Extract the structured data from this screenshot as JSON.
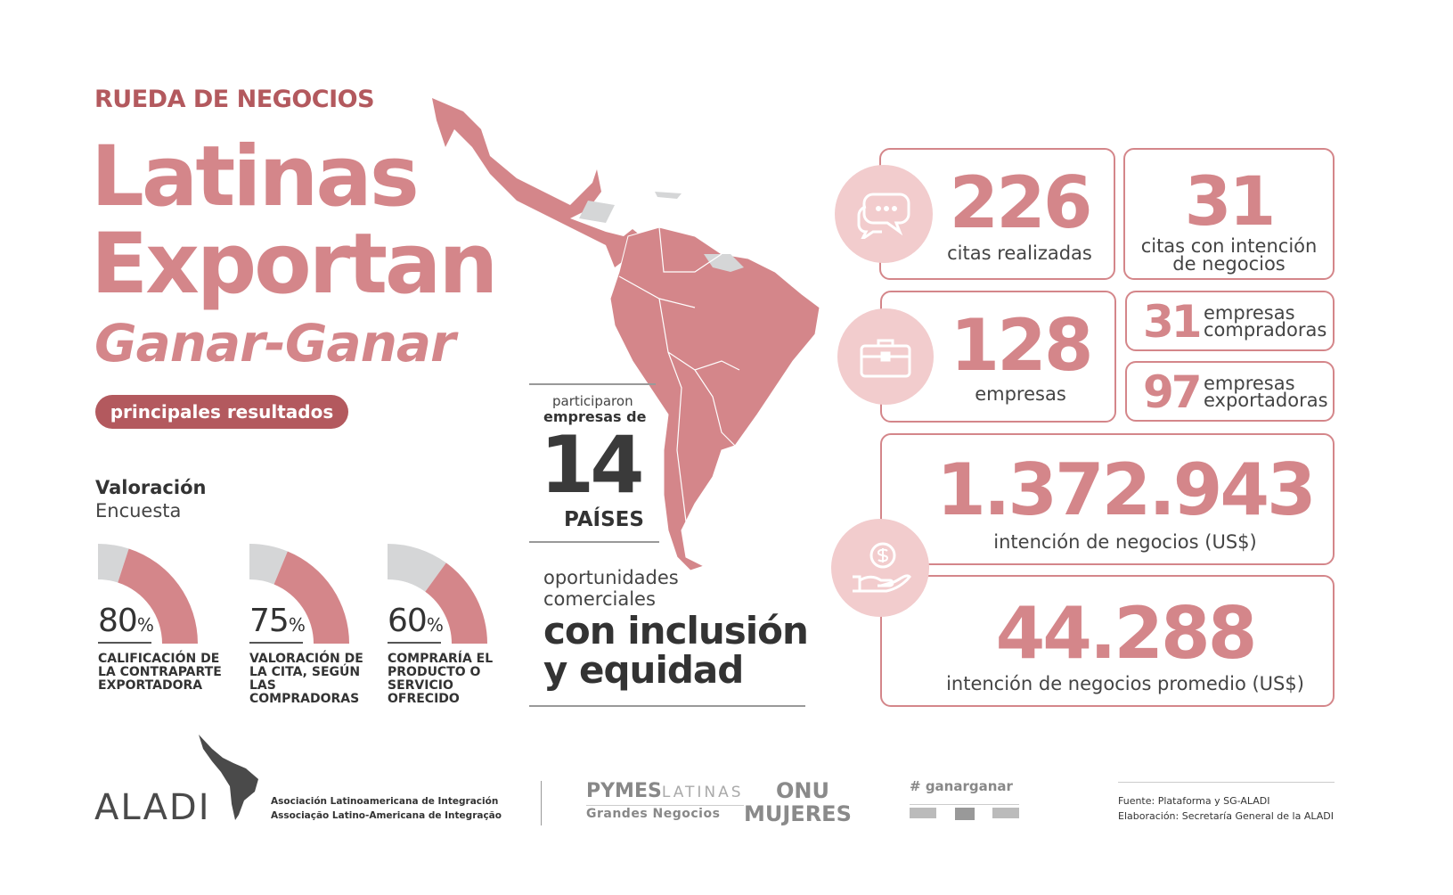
{
  "header": {
    "kicker": "RUEDA DE NEGOCIOS",
    "title_line1": "Latinas",
    "title_line2": "Exportan",
    "subtitle": "Ganar-Ganar",
    "pill": "principales resultados"
  },
  "survey": {
    "title": "Valoración",
    "subtitle": "Encuesta",
    "gauges": [
      {
        "value": 80,
        "pct_label": "80",
        "unit": "%",
        "label": "CALIFICACIÓN DE LA CONTRAPARTE EXPORTADORA"
      },
      {
        "value": 75,
        "pct_label": "75",
        "unit": "%",
        "label": "VALORACIÓN DE LA CITA, SEGÚN LAS COMPRADORAS"
      },
      {
        "value": 60,
        "pct_label": "60",
        "unit": "%",
        "label": "COMPRARÍA EL PRODUCTO O SERVICIO OFRECIDO"
      }
    ]
  },
  "center": {
    "participaron": "participaron",
    "empresas_de": "empresas de",
    "countries": "14",
    "paises": "PAÍSES",
    "oport1": "oportunidades",
    "oport2": "comerciales",
    "incl1": "con inclusión",
    "incl2": "y equidad"
  },
  "stats": {
    "citas": {
      "value": "226",
      "label": "citas realizadas"
    },
    "citas_intencion": {
      "value": "31",
      "label1": "citas con intención",
      "label2": "de negocios"
    },
    "empresas": {
      "value": "128",
      "label": "empresas"
    },
    "compradoras": {
      "value": "31",
      "label1": "empresas",
      "label2": "compradoras"
    },
    "exportadoras": {
      "value": "97",
      "label1": "empresas",
      "label2": "exportadoras"
    },
    "intencion": {
      "value": "1.372.943",
      "label": "intención de negocios (US$)"
    },
    "promedio": {
      "value": "44.288",
      "label": "intención de negocios promedio (US$)"
    }
  },
  "footer": {
    "aladi": "ALADI",
    "aladi_es": "Asociación Latinoamericana de Integración",
    "aladi_pt": "Associação Latino-Americana de Integração",
    "pymes1": "PYMES",
    "pymes2": "LATINAS",
    "pymes3": "Grandes Negocios",
    "onu1": "ONU",
    "onu2": "MUJERES",
    "ganar": "ganarganar",
    "fuente": "Fuente: Plataforma y SG-ALADI",
    "elaboracion": "Elaboración: Secretaría General de la ALADI"
  },
  "colors": {
    "accent": "#d4868a",
    "dark_accent": "#b3595e",
    "gray": "#d5d6d7"
  }
}
